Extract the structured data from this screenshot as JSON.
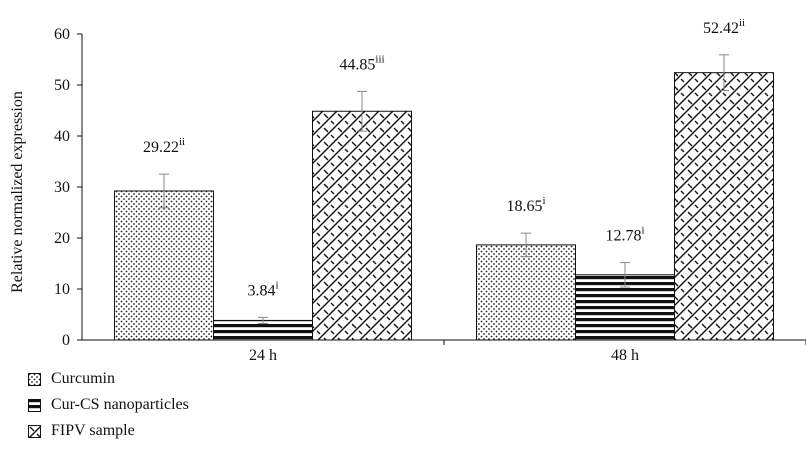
{
  "chart_data": {
    "type": "bar",
    "categories": [
      "24 h",
      "48 h"
    ],
    "ylabel": "Relative normalized expression",
    "ylim": [
      0,
      60
    ],
    "yticks": [
      0,
      10,
      20,
      30,
      40,
      50,
      60
    ],
    "grid": false,
    "legend_position": "bottom-left",
    "series": [
      {
        "name": "Curcumin",
        "pattern": "dots",
        "values": [
          29.22,
          18.65
        ],
        "errors": [
          3.3,
          2.3
        ],
        "labels": [
          "29.22",
          "18.65"
        ],
        "superscripts": [
          "ii",
          "i"
        ]
      },
      {
        "name": "Cur-CS nanoparticles",
        "pattern": "horizontal-stripes",
        "values": [
          3.84,
          12.78
        ],
        "errors": [
          0.6,
          2.4
        ],
        "labels": [
          "3.84",
          "12.78"
        ],
        "superscripts": [
          "i",
          "i"
        ]
      },
      {
        "name": "FIPV sample",
        "pattern": "weave",
        "values": [
          44.85,
          52.42
        ],
        "errors": [
          3.9,
          3.5
        ],
        "labels": [
          "44.85",
          "52.42"
        ],
        "superscripts": [
          "iii",
          "ii"
        ]
      }
    ],
    "colors": {
      "ink": "#111111",
      "errorbar": "#888888"
    }
  }
}
